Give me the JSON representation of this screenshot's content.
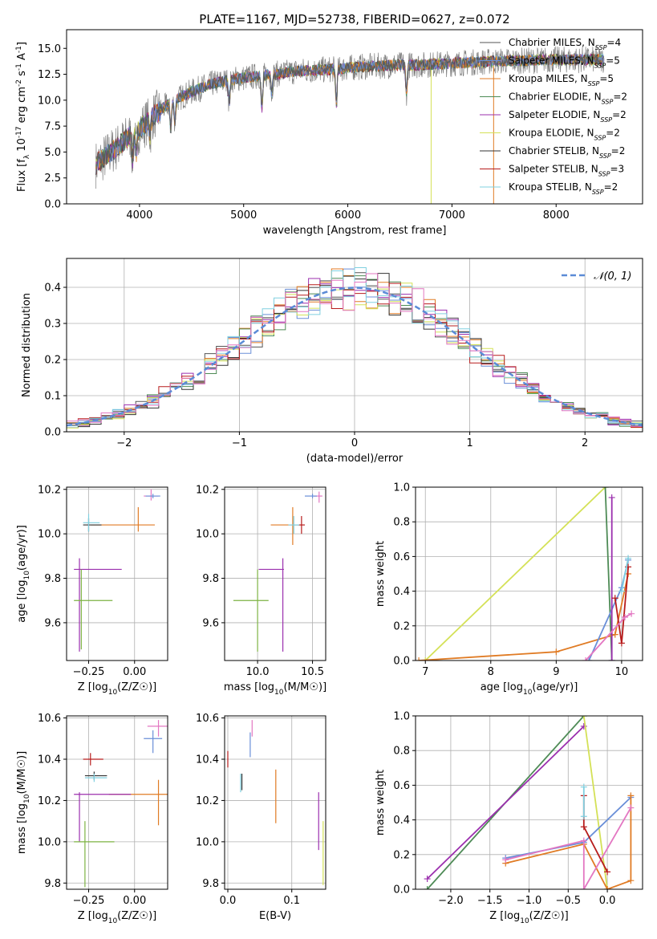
{
  "chart_data": [
    {
      "type": "line",
      "panel": "spectrum",
      "title": "PLATE=1167, MJD=52738, FIBERID=0627, z=0.072",
      "xlabel": "wavelength [Angstrom, rest frame]",
      "ylabel": "Flux [f_λ 10^-17 erg cm^-2 s^-1 A^-1]",
      "xlim": [
        3300,
        8830
      ],
      "ylim": [
        0,
        16.8
      ],
      "xticks": [
        4000,
        5000,
        6000,
        7000,
        8000
      ],
      "yticks": [
        0.0,
        2.5,
        5.0,
        7.5,
        10.0,
        12.5,
        15.0
      ],
      "grid": false,
      "legend_position": "top-right",
      "continuum": {
        "x": [
          3580,
          3700,
          3800,
          3900,
          4000,
          4100,
          4300,
          4500,
          4700,
          4900,
          5100,
          5300,
          5500,
          5700,
          5900,
          6100,
          6300,
          6500,
          6700,
          6900,
          7100,
          7300,
          7500,
          7700,
          7900,
          8100,
          8300,
          8450
        ],
        "y": [
          3.8,
          4.8,
          5.6,
          6.5,
          7.2,
          8.2,
          9.8,
          10.8,
          11.6,
          12.0,
          12.3,
          12.5,
          12.8,
          12.9,
          13.0,
          13.2,
          13.3,
          13.4,
          13.4,
          13.5,
          13.6,
          13.7,
          13.8,
          13.8,
          13.9,
          13.9,
          13.9,
          13.9
        ]
      },
      "series": [
        {
          "name": "Chabrier MILES, N_SSP=4",
          "color": "#555555"
        },
        {
          "name": "Salpeter MILES, N_SSP=5",
          "color": "#6a8fd8"
        },
        {
          "name": "Kroupa MILES, N_SSP=5",
          "color": "#e07b24"
        },
        {
          "name": "Chabrier ELODIE, N_SSP=2",
          "color": "#4e8b56"
        },
        {
          "name": "Salpeter ELODIE, N_SSP=2",
          "color": "#9b2fae"
        },
        {
          "name": "Kroupa ELODIE, N_SSP=2",
          "color": "#d4e157"
        },
        {
          "name": "Chabrier STELIB, N_SSP=2",
          "color": "#333333"
        },
        {
          "name": "Salpeter STELIB, N_SSP=3",
          "color": "#b71c1c"
        },
        {
          "name": "Kroupa STELIB, N_SSP=2",
          "color": "#80d0e0"
        }
      ]
    },
    {
      "type": "line",
      "panel": "residuals",
      "xlabel": "(data-model)/error",
      "ylabel": "Normed distribution",
      "xlim": [
        -2.5,
        2.5
      ],
      "ylim": [
        0,
        0.48
      ],
      "xticks": [
        -2,
        -1,
        0,
        1,
        2
      ],
      "yticks": [
        0.0,
        0.1,
        0.2,
        0.3,
        0.4
      ],
      "grid": true,
      "legend_position": "top-right",
      "legend": [
        "𝒩(0, 1)"
      ],
      "reference_curve": {
        "name": "𝒩(0, 1)",
        "color": "#5b8bd6",
        "style": "dashed",
        "mean": 0,
        "sigma": 1
      },
      "histogram_bin_width": 0.1,
      "histogram_colors": [
        "#555555",
        "#6a8fd8",
        "#e07b24",
        "#4e8b56",
        "#9b2fae",
        "#d4e157",
        "#333333",
        "#b71c1c",
        "#80d0e0",
        "#e377c2"
      ]
    },
    {
      "type": "scatter",
      "panel": "age-vs-Z",
      "xlabel": "Z [log10(Z/Z☉)]",
      "ylabel": "age  [log10(age/yr)]",
      "xlim": [
        -0.37,
        0.18
      ],
      "ylim": [
        9.43,
        10.21
      ],
      "xticks": [
        -0.25,
        0.0
      ],
      "yticks": [
        9.6,
        9.8,
        10.0,
        10.2
      ],
      "grid": true,
      "points": [
        {
          "x": 0.02,
          "y": 10.04,
          "xerr": [
            0.26,
            0.09
          ],
          "yerr": [
            0.03,
            0.08
          ],
          "color": "#e07b24"
        },
        {
          "x": -0.25,
          "y": 10.04,
          "xerr": [
            0.03,
            0.07
          ],
          "yerr": [
            0.03,
            0.03
          ],
          "color": "#333333"
        },
        {
          "x": -0.25,
          "y": 10.05,
          "xerr": [
            0.03,
            0.06
          ],
          "yerr": [
            0.04,
            0.04
          ],
          "color": "#80d0e0"
        },
        {
          "x": 0.09,
          "y": 10.17,
          "xerr": [
            0.04,
            0.04
          ],
          "yerr": [
            0.02,
            0.03
          ],
          "color": "#e377c2"
        },
        {
          "x": 0.1,
          "y": 10.17,
          "xerr": [
            0.04,
            0.04
          ],
          "yerr": [
            0.01,
            0.01
          ],
          "color": "#6a8fd8"
        },
        {
          "x": -0.3,
          "y": 9.84,
          "xerr": [
            0.03,
            0.23
          ],
          "yerr": [
            0.37,
            0.05
          ],
          "color": "#9b2fae"
        },
        {
          "x": -0.29,
          "y": 9.7,
          "xerr": [
            0.04,
            0.17
          ],
          "yerr": [
            0.22,
            0.14
          ],
          "color": "#7cb342"
        }
      ]
    },
    {
      "type": "scatter",
      "panel": "age-vs-mass",
      "xlabel": "mass [log10(M/M☉)]",
      "ylabel": "",
      "xlim": [
        9.7,
        10.62
      ],
      "ylim": [
        9.43,
        10.21
      ],
      "xticks": [
        10.0,
        10.5
      ],
      "yticks": [
        9.6,
        9.8,
        10.0,
        10.2
      ],
      "grid": true,
      "points": [
        {
          "x": 10.32,
          "y": 10.04,
          "xerr": [
            0.2,
            0.06
          ],
          "yerr": [
            0.09,
            0.08
          ],
          "color": "#e07b24"
        },
        {
          "x": 10.4,
          "y": 10.04,
          "xerr": [
            0.03,
            0.03
          ],
          "yerr": [
            0.04,
            0.04
          ],
          "color": "#b71c1c"
        },
        {
          "x": 10.33,
          "y": 10.04,
          "xerr": [
            0.05,
            0.05
          ],
          "yerr": [
            0.04,
            0.04
          ],
          "color": "#80d0e0"
        },
        {
          "x": 10.56,
          "y": 10.17,
          "xerr": [
            0.05,
            0.03
          ],
          "yerr": [
            0.03,
            0.02
          ],
          "color": "#e377c2"
        },
        {
          "x": 10.5,
          "y": 10.17,
          "xerr": [
            0.07,
            0.04
          ],
          "yerr": [
            0.01,
            0.01
          ],
          "color": "#6a8fd8"
        },
        {
          "x": 10.23,
          "y": 9.84,
          "xerr": [
            0.22,
            0.01
          ],
          "yerr": [
            0.37,
            0.05
          ],
          "color": "#9b2fae"
        },
        {
          "x": 10.0,
          "y": 9.7,
          "xerr": [
            0.22,
            0.1
          ],
          "yerr": [
            0.23,
            0.14
          ],
          "color": "#7cb342"
        }
      ]
    },
    {
      "type": "line",
      "panel": "mass-weight-vs-age",
      "xlabel": "age  [log10(age/yr)]",
      "ylabel": "mass weight",
      "xlim": [
        6.85,
        10.32
      ],
      "ylim": [
        0,
        1
      ],
      "xticks": [
        7,
        8,
        9,
        10
      ],
      "yticks": [
        0.0,
        0.2,
        0.4,
        0.6,
        0.8,
        1.0
      ],
      "grid": true,
      "series": [
        {
          "color": "#d4e157",
          "x": [
            7.0,
            9.75
          ],
          "y": [
            0.0,
            1.0
          ]
        },
        {
          "color": "#4e8b56",
          "x": [
            9.75,
            9.85
          ],
          "y": [
            1.0,
            0.0
          ]
        },
        {
          "color": "#e07b24",
          "x": [
            6.9,
            9.0,
            9.9,
            10.1
          ],
          "y": [
            0.0,
            0.05,
            0.15,
            0.5
          ]
        },
        {
          "color": "#6a8fd8",
          "x": [
            9.5,
            10.0,
            10.1
          ],
          "y": [
            0.0,
            0.42,
            0.58
          ]
        },
        {
          "color": "#9b2fae",
          "x": [
            9.85,
            9.85
          ],
          "y": [
            0.0,
            0.94
          ]
        },
        {
          "color": "#b71c1c",
          "x": [
            9.9,
            10.0,
            10.1
          ],
          "y": [
            0.36,
            0.1,
            0.54
          ]
        },
        {
          "color": "#e377c2",
          "x": [
            9.45,
            10.05,
            10.15
          ],
          "y": [
            0.0,
            0.25,
            0.27
          ]
        },
        {
          "color": "#80d0e0",
          "x": [
            10.0,
            10.1
          ],
          "y": [
            0.4,
            0.59
          ]
        }
      ]
    },
    {
      "type": "scatter",
      "panel": "mass-vs-Z",
      "xlabel": "Z [log10(Z/Z☉)]",
      "ylabel": "mass [log10(M/M☉)]",
      "xlim": [
        -0.37,
        0.18
      ],
      "ylim": [
        9.77,
        10.61
      ],
      "xticks": [
        -0.25,
        0.0
      ],
      "yticks": [
        9.8,
        10.0,
        10.2,
        10.4,
        10.6
      ],
      "grid": true,
      "points": [
        {
          "x": 0.1,
          "y": 10.5,
          "xerr": [
            0.05,
            0.05
          ],
          "yerr": [
            0.07,
            0.04
          ],
          "color": "#6a8fd8"
        },
        {
          "x": 0.13,
          "y": 10.56,
          "xerr": [
            0.06,
            0.06
          ],
          "yerr": [
            0.05,
            0.03
          ],
          "color": "#e377c2"
        },
        {
          "x": -0.24,
          "y": 10.4,
          "xerr": [
            0.04,
            0.07
          ],
          "yerr": [
            0.03,
            0.03
          ],
          "color": "#b71c1c"
        },
        {
          "x": -0.22,
          "y": 10.32,
          "xerr": [
            0.05,
            0.07
          ],
          "yerr": [
            0.02,
            0.02
          ],
          "color": "#333333"
        },
        {
          "x": -0.22,
          "y": 10.31,
          "xerr": [
            0.05,
            0.07
          ],
          "yerr": [
            0.02,
            0.02
          ],
          "color": "#80d0e0"
        },
        {
          "x": 0.13,
          "y": 10.23,
          "xerr": [
            0.27,
            0.07
          ],
          "yerr": [
            0.15,
            0.07
          ],
          "color": "#e07b24"
        },
        {
          "x": -0.3,
          "y": 10.23,
          "xerr": [
            0.03,
            0.28
          ],
          "yerr": [
            0.23,
            0.01
          ],
          "color": "#9b2fae"
        },
        {
          "x": -0.27,
          "y": 10.0,
          "xerr": [
            0.06,
            0.16
          ],
          "yerr": [
            0.22,
            0.1
          ],
          "color": "#7cb342"
        }
      ]
    },
    {
      "type": "scatter",
      "panel": "mass-vs-EBV",
      "xlabel": "E(B-V)",
      "ylabel": "",
      "xlim": [
        -0.005,
        0.153
      ],
      "ylim": [
        9.77,
        10.61
      ],
      "xticks": [
        0.0,
        0.1
      ],
      "yticks": [
        9.8,
        10.0,
        10.2,
        10.4,
        10.6
      ],
      "grid": true,
      "points": [
        {
          "x": 0.0,
          "y": 10.4,
          "xerr": [
            0,
            0
          ],
          "yerr": [
            0.04,
            0.04
          ],
          "color": "#b71c1c"
        },
        {
          "x": 0.022,
          "y": 10.3,
          "xerr": [
            0,
            0
          ],
          "yerr": [
            0.05,
            0.03
          ],
          "color": "#333333"
        },
        {
          "x": 0.02,
          "y": 10.3,
          "xerr": [
            0,
            0
          ],
          "yerr": [
            0.06,
            0.03
          ],
          "color": "#80d0e0"
        },
        {
          "x": 0.035,
          "y": 10.49,
          "xerr": [
            0,
            0
          ],
          "yerr": [
            0.08,
            0.04
          ],
          "color": "#6a8fd8"
        },
        {
          "x": 0.038,
          "y": 10.55,
          "xerr": [
            0,
            0
          ],
          "yerr": [
            0.04,
            0.04
          ],
          "color": "#e377c2"
        },
        {
          "x": 0.075,
          "y": 10.22,
          "xerr": [
            0,
            0
          ],
          "yerr": [
            0.13,
            0.13
          ],
          "color": "#e07b24"
        },
        {
          "x": 0.142,
          "y": 10.1,
          "xerr": [
            0,
            0
          ],
          "yerr": [
            0.14,
            0.14
          ],
          "color": "#9b2fae"
        },
        {
          "x": 0.149,
          "y": 9.94,
          "xerr": [
            0,
            0
          ],
          "yerr": [
            0.15,
            0.16
          ],
          "color": "#d4e157"
        }
      ]
    },
    {
      "type": "line",
      "panel": "mass-weight-vs-Z",
      "xlabel": "Z [log10(Z/Z☉)]",
      "ylabel": "mass weight",
      "xlim": [
        -2.45,
        0.45
      ],
      "ylim": [
        0,
        1
      ],
      "xticks": [
        -2.0,
        -1.5,
        -1.0,
        -0.5,
        0.0
      ],
      "yticks": [
        0.0,
        0.2,
        0.4,
        0.6,
        0.8,
        1.0
      ],
      "grid": true,
      "series": [
        {
          "color": "#4e8b56",
          "x": [
            -2.3,
            -0.3
          ],
          "y": [
            0.0,
            1.0
          ]
        },
        {
          "color": "#9b2fae",
          "x": [
            -2.3,
            -0.3
          ],
          "y": [
            0.06,
            0.94
          ]
        },
        {
          "color": "#d4e157",
          "x": [
            -0.3,
            0.0
          ],
          "y": [
            1.0,
            0.0
          ]
        },
        {
          "color": "#6a8fd8",
          "x": [
            -1.3,
            -0.3,
            0.3
          ],
          "y": [
            0.18,
            0.27,
            0.53
          ]
        },
        {
          "color": "#e07b24",
          "x": [
            -1.3,
            -0.3,
            0.0,
            0.3,
            0.3
          ],
          "y": [
            0.15,
            0.26,
            0.0,
            0.05,
            0.54
          ]
        },
        {
          "color": "#e377c2",
          "x": [
            -1.3,
            -0.3,
            -0.3,
            0.3
          ],
          "y": [
            0.17,
            0.28,
            0.0,
            0.47
          ]
        },
        {
          "color": "#b71c1c",
          "x": [
            -0.3,
            -0.3,
            0.0
          ],
          "y": [
            0.54,
            0.36,
            0.1
          ]
        },
        {
          "color": "#80d0e0",
          "x": [
            -0.3,
            -0.3
          ],
          "y": [
            0.59,
            0.42
          ]
        }
      ]
    }
  ]
}
